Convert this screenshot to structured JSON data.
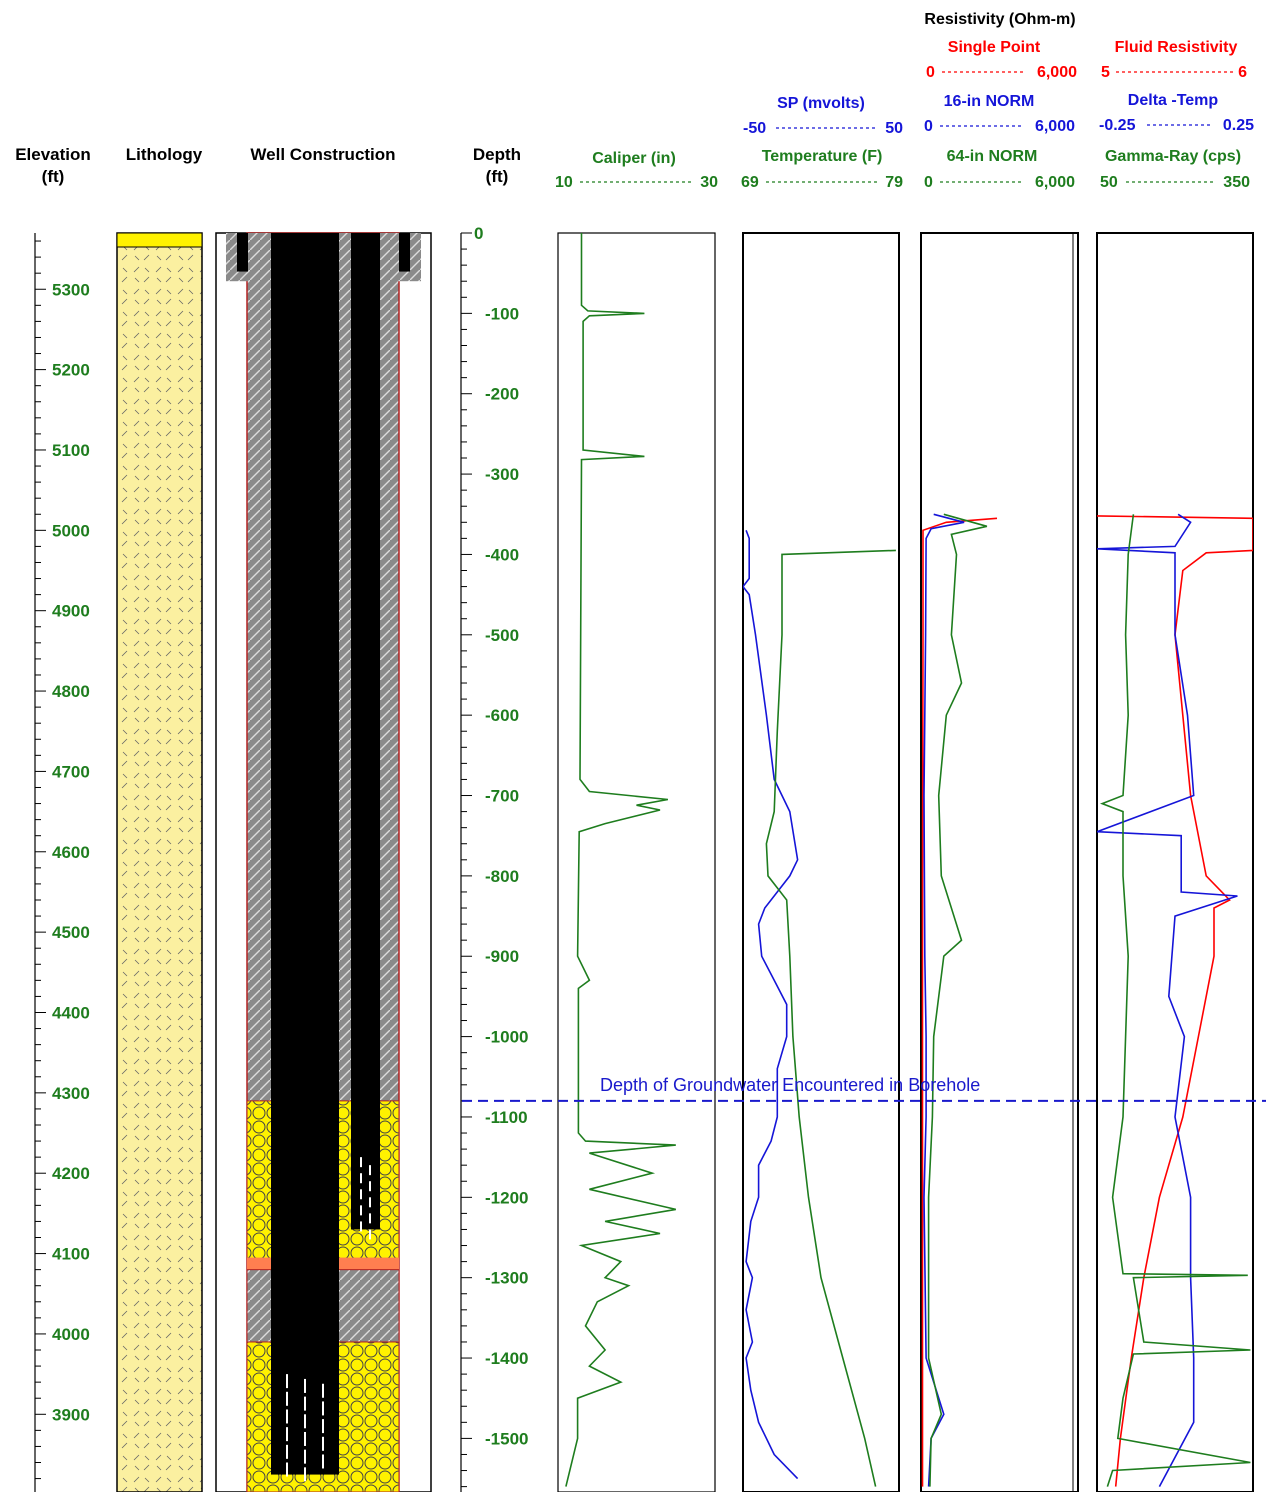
{
  "colors": {
    "green": "#1e7d1e",
    "blue": "#1515d8",
    "red": "#ff0000",
    "black": "#000000",
    "lith_fill": "#fbf0a0",
    "sand_fill": "#fff200",
    "seal_fill": "#ff7f50",
    "grout_fill": "#8a8a8a",
    "casing": "#000000",
    "gw_line": "#1a1acc"
  },
  "headers": {
    "elevation": [
      "Elevation",
      "(ft)"
    ],
    "lithology": "Lithology",
    "well": "Well Construction",
    "depth": [
      "Depth",
      "(ft)"
    ],
    "caliper": {
      "name": "Caliper (in)",
      "left": "10",
      "right": "30"
    },
    "sp": {
      "name": "SP (mvolts)",
      "left": "-50",
      "right": "50"
    },
    "temperature": {
      "name": "Temperature (F)",
      "left": "69",
      "right": "79"
    },
    "resistivity_title": "Resistivity (Ohm-m)",
    "single_point": {
      "name": "Single Point",
      "left": "0",
      "right": "6,000"
    },
    "norm16": {
      "name": "16-in NORM",
      "left": "0",
      "right": "6,000"
    },
    "norm64": {
      "name": "64-in NORM",
      "left": "0",
      "right": "6,000"
    },
    "fluid_res": {
      "name": "Fluid Resistivity",
      "left": "5",
      "right": "6"
    },
    "delta_temp": {
      "name": "Delta -Temp",
      "left": "-0.25",
      "right": "0.25"
    },
    "gamma": {
      "name": "Gamma-Ray (cps)",
      "left": "50",
      "right": "350"
    }
  },
  "annotation": "Depth of Groundwater Encountered in Borehole",
  "chart_data": {
    "type": "line",
    "depth_range_ft": [
      0,
      -1560
    ],
    "elevation_ticks": [
      5300,
      5200,
      5100,
      5000,
      4900,
      4800,
      4700,
      4600,
      4500,
      4400,
      4300,
      4200,
      4100,
      4000,
      3900
    ],
    "elevation_at_depth0": 5370,
    "depth_ticks": [
      0,
      -100,
      -200,
      -300,
      -400,
      -500,
      -600,
      -700,
      -800,
      -900,
      -1000,
      -1100,
      -1200,
      -1300,
      -1400,
      -1500
    ],
    "groundwater_depth_ft": -1080,
    "well_construction": {
      "surface_casing_bottom_ft": -60,
      "upper_sand_pack_ft": [
        -1080,
        -1290
      ],
      "seal_ft": [
        -1275,
        -1290
      ],
      "lower_sand_pack_ft": [
        -1380,
        -1560
      ],
      "inner_casing_bottom_ft": -1240
    },
    "series": [
      {
        "name": "Caliper (in)",
        "track": "caliper",
        "range": [
          10,
          30
        ],
        "points": [
          [
            0,
            13
          ],
          [
            -90,
            13
          ],
          [
            -97,
            13.8
          ],
          [
            -100,
            21
          ],
          [
            -103,
            14
          ],
          [
            -110,
            13.2
          ],
          [
            -270,
            13.2
          ],
          [
            -278,
            21
          ],
          [
            -282,
            13
          ],
          [
            -680,
            12.8
          ],
          [
            -695,
            14
          ],
          [
            -705,
            24
          ],
          [
            -712,
            20
          ],
          [
            -718,
            23
          ],
          [
            -735,
            16
          ],
          [
            -745,
            12.7
          ],
          [
            -900,
            12.5
          ],
          [
            -930,
            14
          ],
          [
            -940,
            12.6
          ],
          [
            -1000,
            12.6
          ],
          [
            -1120,
            12.6
          ],
          [
            -1130,
            13.5
          ],
          [
            -1135,
            25
          ],
          [
            -1145,
            14
          ],
          [
            -1170,
            22
          ],
          [
            -1190,
            14
          ],
          [
            -1215,
            25
          ],
          [
            -1230,
            16
          ],
          [
            -1245,
            23
          ],
          [
            -1260,
            13
          ],
          [
            -1280,
            18
          ],
          [
            -1300,
            16
          ],
          [
            -1310,
            19
          ],
          [
            -1330,
            15
          ],
          [
            -1360,
            13.5
          ],
          [
            -1390,
            16
          ],
          [
            -1410,
            14
          ],
          [
            -1430,
            18
          ],
          [
            -1450,
            12.5
          ],
          [
            -1500,
            12.5
          ],
          [
            -1560,
            11
          ]
        ]
      },
      {
        "name": "SP (mvolts)",
        "track": "temp",
        "range": [
          -50,
          50
        ],
        "points": [
          [
            -370,
            -48
          ],
          [
            -380,
            -46
          ],
          [
            -430,
            -46
          ],
          [
            -440,
            -50
          ],
          [
            -450,
            -46
          ],
          [
            -500,
            -42
          ],
          [
            -600,
            -35
          ],
          [
            -680,
            -30
          ],
          [
            -720,
            -20
          ],
          [
            -780,
            -15
          ],
          [
            -800,
            -20
          ],
          [
            -840,
            -36
          ],
          [
            -860,
            -40
          ],
          [
            -900,
            -38
          ],
          [
            -930,
            -30
          ],
          [
            -960,
            -22
          ],
          [
            -1000,
            -22
          ],
          [
            -1040,
            -28
          ],
          [
            -1100,
            -28
          ],
          [
            -1130,
            -32
          ],
          [
            -1160,
            -40
          ],
          [
            -1200,
            -40
          ],
          [
            -1230,
            -45
          ],
          [
            -1280,
            -48
          ],
          [
            -1300,
            -44
          ],
          [
            -1340,
            -48
          ],
          [
            -1380,
            -44
          ],
          [
            -1400,
            -48
          ],
          [
            -1440,
            -45
          ],
          [
            -1480,
            -40
          ],
          [
            -1520,
            -30
          ],
          [
            -1550,
            -15
          ]
        ]
      },
      {
        "name": "Temperature (F)",
        "track": "temp",
        "range": [
          69,
          79
        ],
        "points": [
          [
            -395,
            78.8
          ],
          [
            -400,
            71.5
          ],
          [
            -500,
            71.5
          ],
          [
            -620,
            71.2
          ],
          [
            -720,
            71
          ],
          [
            -760,
            70.5
          ],
          [
            -800,
            70.6
          ],
          [
            -830,
            71.8
          ],
          [
            -900,
            72
          ],
          [
            -1000,
            72.2
          ],
          [
            -1100,
            72.6
          ],
          [
            -1200,
            73.2
          ],
          [
            -1300,
            74
          ],
          [
            -1400,
            75.4
          ],
          [
            -1500,
            76.8
          ],
          [
            -1560,
            77.5
          ]
        ]
      },
      {
        "name": "Single Point",
        "track": "res",
        "range": [
          0,
          6000
        ],
        "points": [
          [
            -355,
            3000
          ],
          [
            -360,
            1000
          ],
          [
            -370,
            80
          ],
          [
            -500,
            80
          ],
          [
            -800,
            60
          ],
          [
            -1200,
            60
          ],
          [
            -1560,
            60
          ]
        ]
      },
      {
        "name": "16-in NORM",
        "track": "res",
        "range": [
          0,
          6000
        ],
        "points": [
          [
            -350,
            500
          ],
          [
            -360,
            1700
          ],
          [
            -368,
            400
          ],
          [
            -380,
            200
          ],
          [
            -500,
            180
          ],
          [
            -700,
            120
          ],
          [
            -900,
            150
          ],
          [
            -1000,
            200
          ],
          [
            -1100,
            200
          ],
          [
            -1200,
            120
          ],
          [
            -1400,
            200
          ],
          [
            -1470,
            900
          ],
          [
            -1500,
            400
          ],
          [
            -1560,
            300
          ]
        ]
      },
      {
        "name": "64-in NORM",
        "track": "res",
        "range": [
          0,
          6000
        ],
        "points": [
          [
            -350,
            900
          ],
          [
            -365,
            2600
          ],
          [
            -375,
            1200
          ],
          [
            -400,
            1400
          ],
          [
            -500,
            1200
          ],
          [
            -560,
            1600
          ],
          [
            -600,
            1000
          ],
          [
            -700,
            700
          ],
          [
            -800,
            800
          ],
          [
            -880,
            1600
          ],
          [
            -900,
            900
          ],
          [
            -1000,
            500
          ],
          [
            -1100,
            450
          ],
          [
            -1200,
            300
          ],
          [
            -1400,
            300
          ],
          [
            -1470,
            800
          ],
          [
            -1500,
            400
          ],
          [
            -1560,
            350
          ]
        ]
      },
      {
        "name": "Fluid Resistivity",
        "track": "fluid",
        "range": [
          5,
          6
        ],
        "points": [
          [
            -352,
            5
          ],
          [
            -355,
            6
          ],
          [
            -395,
            6
          ],
          [
            -398,
            5.7
          ],
          [
            -420,
            5.55
          ],
          [
            -500,
            5.5
          ],
          [
            -600,
            5.55
          ],
          [
            -700,
            5.6
          ],
          [
            -800,
            5.7
          ],
          [
            -830,
            5.85
          ],
          [
            -840,
            5.75
          ],
          [
            -900,
            5.75
          ],
          [
            -1000,
            5.65
          ],
          [
            -1100,
            5.55
          ],
          [
            -1200,
            5.4
          ],
          [
            -1300,
            5.3
          ],
          [
            -1400,
            5.22
          ],
          [
            -1500,
            5.15
          ],
          [
            -1560,
            5.12
          ]
        ]
      },
      {
        "name": "Delta -Temp",
        "track": "fluid",
        "range": [
          -0.25,
          0.25
        ],
        "points": [
          [
            -350,
            0.01
          ],
          [
            -360,
            0.05
          ],
          [
            -390,
            0.0
          ],
          [
            -393,
            -0.25
          ],
          [
            -398,
            0.0
          ],
          [
            -420,
            0.0
          ],
          [
            -500,
            0.0
          ],
          [
            -600,
            0.04
          ],
          [
            -700,
            0.06
          ],
          [
            -745,
            -0.25
          ],
          [
            -750,
            0.02
          ],
          [
            -820,
            0.02
          ],
          [
            -825,
            0.2
          ],
          [
            -850,
            0.0
          ],
          [
            -950,
            -0.02
          ],
          [
            -1000,
            0.03
          ],
          [
            -1100,
            0.0
          ],
          [
            -1200,
            0.05
          ],
          [
            -1300,
            0.05
          ],
          [
            -1400,
            0.06
          ],
          [
            -1480,
            0.06
          ],
          [
            -1560,
            -0.05
          ]
        ]
      },
      {
        "name": "Gamma-Ray (cps)",
        "track": "fluid",
        "range": [
          50,
          350
        ],
        "points": [
          [
            -350,
            120
          ],
          [
            -400,
            110
          ],
          [
            -500,
            105
          ],
          [
            -600,
            110
          ],
          [
            -700,
            100
          ],
          [
            -710,
            60
          ],
          [
            -720,
            100
          ],
          [
            -800,
            100
          ],
          [
            -900,
            110
          ],
          [
            -1000,
            105
          ],
          [
            -1100,
            100
          ],
          [
            -1200,
            80
          ],
          [
            -1295,
            100
          ],
          [
            -1297,
            340
          ],
          [
            -1300,
            120
          ],
          [
            -1380,
            140
          ],
          [
            -1390,
            345
          ],
          [
            -1395,
            120
          ],
          [
            -1450,
            100
          ],
          [
            -1500,
            90
          ],
          [
            -1530,
            345
          ],
          [
            -1540,
            80
          ],
          [
            -1560,
            70
          ]
        ]
      }
    ]
  }
}
